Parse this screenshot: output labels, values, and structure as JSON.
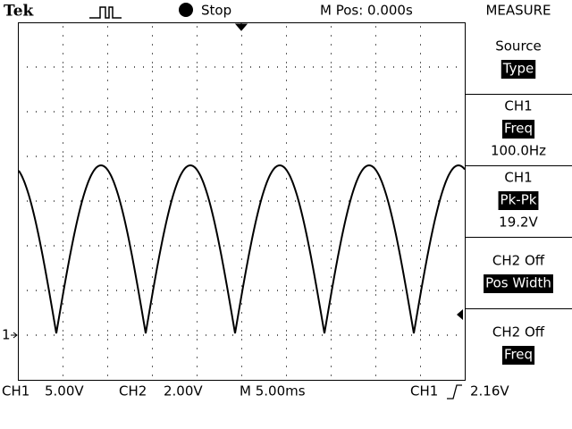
{
  "header": {
    "brand": "Tek",
    "status": "Stop",
    "position": "M Pos: 0.000s",
    "menu_title": "MEASURE"
  },
  "menu": [
    {
      "label": "Source",
      "value": "Type"
    },
    {
      "label": "CH1",
      "value": "Freq",
      "reading": "100.0Hz"
    },
    {
      "label": "CH1",
      "value": "Pk-Pk",
      "reading": "19.2V"
    },
    {
      "label": "CH2 Off",
      "value": "Pos Width"
    },
    {
      "label": "CH2 Off",
      "value": "Freq"
    }
  ],
  "markers": {
    "ch1": "1"
  },
  "footer": {
    "ch1": "CH1",
    "ch1_scale": "5.00V",
    "ch2": "CH2",
    "ch2_scale": "2.00V",
    "time": "M 5.00ms",
    "trigger_source": "CH1",
    "trigger_level": "2.16V"
  }
}
